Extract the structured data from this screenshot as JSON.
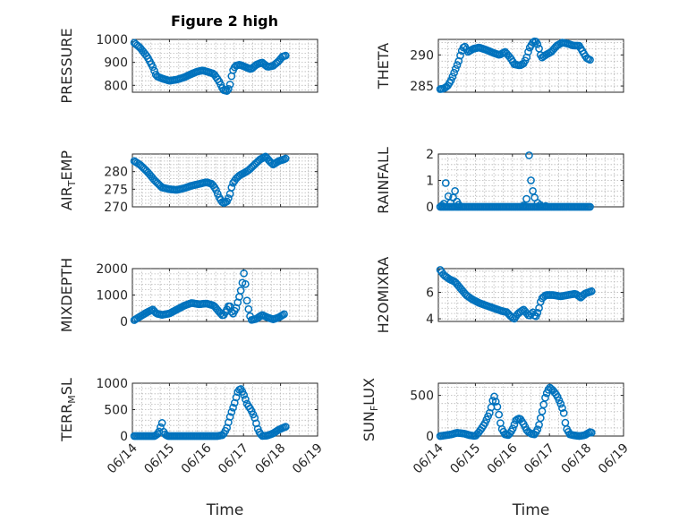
{
  "figure": {
    "title": "Figure 2 high",
    "marker_color": "#0072bd",
    "grid": true
  },
  "chart_data": [
    {
      "id": "pressure",
      "type": "scatter",
      "ylabel": "PRESSURE",
      "ylabel_parts": [
        {
          "t": "PRESSURE",
          "sub": false
        }
      ],
      "xlim": [
        0,
        5
      ],
      "ylim": [
        770,
        1000
      ],
      "yticks": [
        800,
        900,
        1000
      ],
      "ytick_labels": [
        "800",
        "900",
        "1000"
      ],
      "xticks": [
        0,
        1,
        2,
        3,
        4,
        5
      ],
      "y_anchors": [
        [
          0.05,
          985
        ],
        [
          0.2,
          965
        ],
        [
          0.4,
          925
        ],
        [
          0.55,
          880
        ],
        [
          0.65,
          840
        ],
        [
          0.8,
          830
        ],
        [
          1,
          820
        ],
        [
          1.2,
          825
        ],
        [
          1.4,
          835
        ],
        [
          1.6,
          850
        ],
        [
          1.75,
          860
        ],
        [
          1.9,
          865
        ],
        [
          2.05,
          858
        ],
        [
          2.2,
          850
        ],
        [
          2.35,
          815
        ],
        [
          2.45,
          780
        ],
        [
          2.55,
          775
        ],
        [
          2.62,
          790
        ],
        [
          2.7,
          860
        ],
        [
          2.78,
          885
        ],
        [
          2.9,
          890
        ],
        [
          3.05,
          880
        ],
        [
          3.2,
          870
        ],
        [
          3.35,
          890
        ],
        [
          3.5,
          900
        ],
        [
          3.65,
          880
        ],
        [
          3.8,
          885
        ],
        [
          3.95,
          905
        ],
        [
          4.05,
          925
        ],
        [
          4.15,
          930
        ]
      ]
    },
    {
      "id": "theta",
      "type": "scatter",
      "ylabel": "THETA",
      "ylabel_parts": [
        {
          "t": "THETA",
          "sub": false
        }
      ],
      "xlim": [
        0,
        5
      ],
      "ylim": [
        284,
        292.5
      ],
      "yticks": [
        285,
        290
      ],
      "ytick_labels": [
        "285",
        "290"
      ],
      "xticks": [
        0,
        1,
        2,
        3,
        4,
        5
      ],
      "y_anchors": [
        [
          0.05,
          284.5
        ],
        [
          0.15,
          284.6
        ],
        [
          0.25,
          285
        ],
        [
          0.35,
          286
        ],
        [
          0.45,
          287.5
        ],
        [
          0.55,
          289
        ],
        [
          0.62,
          290.5
        ],
        [
          0.7,
          291.5
        ],
        [
          0.8,
          290.5
        ],
        [
          0.95,
          291
        ],
        [
          1.1,
          291.2
        ],
        [
          1.3,
          290.8
        ],
        [
          1.5,
          290.3
        ],
        [
          1.65,
          290
        ],
        [
          1.8,
          290.5
        ],
        [
          1.95,
          289.5
        ],
        [
          2.05,
          288.5
        ],
        [
          2.2,
          288.3
        ],
        [
          2.3,
          288.6
        ],
        [
          2.38,
          289.5
        ],
        [
          2.45,
          291
        ],
        [
          2.55,
          292
        ],
        [
          2.62,
          292.3
        ],
        [
          2.7,
          291.5
        ],
        [
          2.78,
          289.5
        ],
        [
          2.9,
          290
        ],
        [
          3.05,
          290.5
        ],
        [
          3.2,
          291.5
        ],
        [
          3.35,
          292
        ],
        [
          3.5,
          291.8
        ],
        [
          3.65,
          291.5
        ],
        [
          3.8,
          291.5
        ],
        [
          3.9,
          290.5
        ],
        [
          4,
          289.5
        ],
        [
          4.1,
          289.2
        ]
      ]
    },
    {
      "id": "air_temp",
      "type": "scatter",
      "ylabel": "AIR_TEMP",
      "ylabel_parts": [
        {
          "t": "AIR",
          "sub": false
        },
        {
          "t": "T",
          "sub": true
        },
        {
          "t": "EMP",
          "sub": false
        }
      ],
      "xlim": [
        0,
        5
      ],
      "ylim": [
        270,
        285
      ],
      "yticks": [
        270,
        275,
        280
      ],
      "ytick_labels": [
        "270",
        "275",
        "280"
      ],
      "xticks": [
        0,
        1,
        2,
        3,
        4,
        5
      ],
      "y_anchors": [
        [
          0.05,
          283
        ],
        [
          0.2,
          282
        ],
        [
          0.4,
          280
        ],
        [
          0.6,
          277.5
        ],
        [
          0.8,
          275.5
        ],
        [
          1,
          275
        ],
        [
          1.2,
          274.8
        ],
        [
          1.4,
          275.3
        ],
        [
          1.6,
          276
        ],
        [
          1.8,
          276.5
        ],
        [
          2,
          277
        ],
        [
          2.15,
          276.5
        ],
        [
          2.25,
          275
        ],
        [
          2.35,
          272.5
        ],
        [
          2.45,
          271
        ],
        [
          2.55,
          271.5
        ],
        [
          2.62,
          273
        ],
        [
          2.7,
          276.5
        ],
        [
          2.8,
          278
        ],
        [
          2.9,
          279
        ],
        [
          3,
          279.5
        ],
        [
          3.15,
          280.5
        ],
        [
          3.3,
          282
        ],
        [
          3.45,
          283.5
        ],
        [
          3.6,
          284.3
        ],
        [
          3.7,
          283
        ],
        [
          3.8,
          282
        ],
        [
          3.95,
          283
        ],
        [
          4.1,
          283.5
        ],
        [
          4.15,
          283.8
        ]
      ]
    },
    {
      "id": "rainfall",
      "type": "scatter",
      "ylabel": "RAINFALL",
      "ylabel_parts": [
        {
          "t": "RAINFALL",
          "sub": false
        }
      ],
      "xlim": [
        0,
        5
      ],
      "ylim": [
        0,
        2
      ],
      "yticks": [
        0,
        1,
        2
      ],
      "ytick_labels": [
        "0",
        "1",
        "2"
      ],
      "xticks": [
        0,
        1,
        2,
        3,
        4,
        5
      ],
      "y_anchors": [
        [
          0.05,
          0
        ],
        [
          4.1,
          0
        ]
      ],
      "spikes": [
        [
          0.1,
          0.05
        ],
        [
          0.15,
          0.12
        ],
        [
          0.2,
          0.9
        ],
        [
          0.27,
          0.4
        ],
        [
          0.33,
          0.15
        ],
        [
          0.4,
          0.35
        ],
        [
          0.45,
          0.6
        ],
        [
          0.5,
          0.2
        ],
        [
          0.55,
          0.08
        ],
        [
          2.3,
          0.05
        ],
        [
          2.38,
          0.3
        ],
        [
          2.45,
          1.95
        ],
        [
          2.5,
          1
        ],
        [
          2.55,
          0.6
        ],
        [
          2.6,
          0.35
        ],
        [
          2.68,
          0.15
        ],
        [
          2.75,
          0.07
        ],
        [
          2.9,
          0.03
        ]
      ]
    },
    {
      "id": "mixdepth",
      "type": "scatter",
      "ylabel": "MIXDEPTH",
      "ylabel_parts": [
        {
          "t": "MIXDEPTH",
          "sub": false
        }
      ],
      "xlim": [
        0,
        5
      ],
      "ylim": [
        0,
        2000
      ],
      "yticks": [
        0,
        1000,
        2000
      ],
      "ytick_labels": [
        "0",
        "1000",
        "2000"
      ],
      "xticks": [
        0,
        1,
        2,
        3,
        4,
        5
      ],
      "y_anchors": [
        [
          0.05,
          50
        ],
        [
          0.2,
          180
        ],
        [
          0.4,
          350
        ],
        [
          0.55,
          450
        ],
        [
          0.65,
          300
        ],
        [
          0.8,
          250
        ],
        [
          1,
          300
        ],
        [
          1.2,
          450
        ],
        [
          1.4,
          600
        ],
        [
          1.6,
          700
        ],
        [
          1.8,
          650
        ],
        [
          2,
          680
        ],
        [
          2.2,
          600
        ],
        [
          2.35,
          350
        ],
        [
          2.45,
          200
        ],
        [
          2.55,
          450
        ],
        [
          2.62,
          650
        ],
        [
          2.7,
          250
        ],
        [
          2.8,
          500
        ],
        [
          2.88,
          900
        ],
        [
          2.95,
          1300
        ],
        [
          3.02,
          1900
        ],
        [
          3.1,
          700
        ],
        [
          3.2,
          50
        ],
        [
          3.35,
          100
        ],
        [
          3.5,
          250
        ],
        [
          3.65,
          150
        ],
        [
          3.8,
          80
        ],
        [
          3.95,
          150
        ],
        [
          4.1,
          280
        ]
      ]
    },
    {
      "id": "h2omixra",
      "type": "scatter",
      "ylabel": "H2OMIXRA",
      "ylabel_parts": [
        {
          "t": "H2OMIXRA",
          "sub": false
        }
      ],
      "xlim": [
        0,
        5
      ],
      "ylim": [
        3.8,
        7.8
      ],
      "yticks": [
        4,
        6
      ],
      "ytick_labels": [
        "4",
        "6"
      ],
      "xticks": [
        0,
        1,
        2,
        3,
        4,
        5
      ],
      "y_anchors": [
        [
          0.05,
          7.7
        ],
        [
          0.15,
          7.3
        ],
        [
          0.3,
          7
        ],
        [
          0.45,
          6.8
        ],
        [
          0.6,
          6.3
        ],
        [
          0.75,
          5.8
        ],
        [
          0.9,
          5.5
        ],
        [
          1.1,
          5.2
        ],
        [
          1.3,
          5
        ],
        [
          1.5,
          4.8
        ],
        [
          1.7,
          4.6
        ],
        [
          1.85,
          4.5
        ],
        [
          1.95,
          4.2
        ],
        [
          2.05,
          4
        ],
        [
          2.15,
          4.4
        ],
        [
          2.3,
          4.7
        ],
        [
          2.45,
          4.2
        ],
        [
          2.55,
          4.5
        ],
        [
          2.62,
          4.1
        ],
        [
          2.7,
          4.6
        ],
        [
          2.78,
          5.5
        ],
        [
          2.9,
          5.8
        ],
        [
          3.1,
          5.8
        ],
        [
          3.3,
          5.7
        ],
        [
          3.5,
          5.8
        ],
        [
          3.7,
          5.9
        ],
        [
          3.85,
          5.6
        ],
        [
          3.95,
          5.9
        ],
        [
          4.05,
          6
        ],
        [
          4.15,
          6.1
        ]
      ]
    },
    {
      "id": "terr_msl",
      "type": "scatter",
      "ylabel": "TERR_MSL",
      "ylabel_parts": [
        {
          "t": "TERR",
          "sub": false
        },
        {
          "t": "M",
          "sub": true
        },
        {
          "t": "SL",
          "sub": false
        }
      ],
      "xlim": [
        0,
        5
      ],
      "ylim": [
        0,
        1000
      ],
      "yticks": [
        0,
        500,
        1000
      ],
      "ytick_labels": [
        "0",
        "500",
        "1000"
      ],
      "xticks": [
        0,
        1,
        2,
        3,
        4,
        5
      ],
      "xtick_labels": [
        "06/14",
        "06/15",
        "06/16",
        "06/17",
        "06/18",
        "06/19"
      ],
      "xlabel": "Time",
      "y_anchors": [
        [
          0.05,
          0
        ],
        [
          0.6,
          0
        ],
        [
          0.7,
          50
        ],
        [
          0.75,
          150
        ],
        [
          0.8,
          250
        ],
        [
          0.85,
          50
        ],
        [
          0.95,
          0
        ],
        [
          2.3,
          0
        ],
        [
          2.45,
          20
        ],
        [
          2.55,
          150
        ],
        [
          2.65,
          400
        ],
        [
          2.75,
          600
        ],
        [
          2.85,
          850
        ],
        [
          2.92,
          900
        ],
        [
          3,
          800
        ],
        [
          3.1,
          600
        ],
        [
          3.2,
          500
        ],
        [
          3.3,
          350
        ],
        [
          3.4,
          100
        ],
        [
          3.5,
          0
        ],
        [
          3.65,
          10
        ],
        [
          3.8,
          50
        ],
        [
          3.95,
          120
        ],
        [
          4.15,
          180
        ]
      ]
    },
    {
      "id": "sun_flux",
      "type": "scatter",
      "ylabel": "SUN_FLUX",
      "ylabel_parts": [
        {
          "t": "SUN",
          "sub": false
        },
        {
          "t": "F",
          "sub": true
        },
        {
          "t": "LUX",
          "sub": false
        }
      ],
      "xlim": [
        0,
        5
      ],
      "ylim": [
        0,
        650
      ],
      "yticks": [
        0,
        500
      ],
      "ytick_labels": [
        "0",
        "500"
      ],
      "xticks": [
        0,
        1,
        2,
        3,
        4,
        5
      ],
      "xtick_labels": [
        "06/14",
        "06/15",
        "06/16",
        "06/17",
        "06/18",
        "06/19"
      ],
      "xlabel": "Time",
      "y_anchors": [
        [
          0.05,
          0
        ],
        [
          0.2,
          10
        ],
        [
          0.35,
          20
        ],
        [
          0.5,
          40
        ],
        [
          0.7,
          30
        ],
        [
          0.85,
          10
        ],
        [
          1,
          0
        ],
        [
          1.1,
          50
        ],
        [
          1.25,
          150
        ],
        [
          1.4,
          300
        ],
        [
          1.5,
          500
        ],
        [
          1.6,
          350
        ],
        [
          1.7,
          100
        ],
        [
          1.8,
          20
        ],
        [
          1.9,
          10
        ],
        [
          2,
          80
        ],
        [
          2.1,
          200
        ],
        [
          2.2,
          220
        ],
        [
          2.3,
          150
        ],
        [
          2.4,
          60
        ],
        [
          2.5,
          30
        ],
        [
          2.6,
          20
        ],
        [
          2.7,
          100
        ],
        [
          2.8,
          300
        ],
        [
          2.9,
          500
        ],
        [
          3,
          600
        ],
        [
          3.1,
          560
        ],
        [
          3.2,
          500
        ],
        [
          3.3,
          400
        ],
        [
          3.38,
          300
        ],
        [
          3.45,
          100
        ],
        [
          3.55,
          20
        ],
        [
          3.65,
          10
        ],
        [
          3.8,
          0
        ],
        [
          3.95,
          10
        ],
        [
          4.1,
          50
        ],
        [
          4.15,
          40
        ]
      ]
    }
  ]
}
